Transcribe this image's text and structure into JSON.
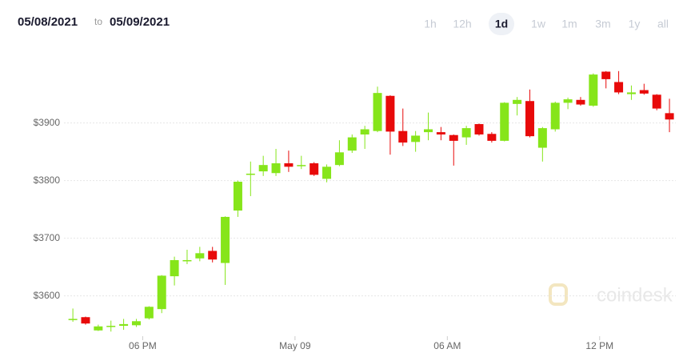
{
  "chart_data": {
    "type": "candlestick",
    "date_from": "05/08/2021",
    "range_separator": "to",
    "date_to": "05/09/2021",
    "ranges": [
      "1h",
      "12h",
      "1d",
      "1w",
      "1m",
      "3m",
      "1y",
      "all"
    ],
    "selected_range": "1d",
    "watermark": "coindesk",
    "up_color": "#86e51a",
    "down_color": "#e80a0a",
    "categories": [
      null,
      null,
      null,
      null,
      null,
      null,
      null,
      null,
      null,
      null,
      null,
      null,
      null,
      null,
      null,
      null,
      null,
      null,
      null,
      null,
      null,
      null,
      null,
      null,
      null,
      null,
      null,
      null,
      null,
      null,
      null,
      null,
      null,
      null,
      null,
      null,
      null,
      null,
      null,
      null,
      null,
      null,
      null,
      null,
      null,
      null,
      null,
      null
    ],
    "open": [
      3559,
      3563,
      3540,
      3546,
      3548,
      3549,
      3561,
      3577,
      3634,
      3660,
      3665,
      3678,
      3657,
      3748,
      3810,
      3816,
      3813,
      3830,
      3826,
      3830,
      3803,
      3827,
      3852,
      3880,
      3886,
      3947,
      3886,
      3867,
      3884,
      3884,
      3879,
      3875,
      3898,
      3881,
      3869,
      3933,
      3938,
      3857,
      3889,
      3935,
      3940,
      3930,
      3989,
      3971,
      3950,
      3957,
      3949,
      3917
    ],
    "high": [
      3578,
      3564,
      3550,
      3557,
      3560,
      3560,
      3582,
      3636,
      3668,
      3680,
      3685,
      3685,
      3738,
      3800,
      3833,
      3843,
      3855,
      3852,
      3843,
      3832,
      3828,
      3870,
      3880,
      3895,
      3963,
      3948,
      3925,
      3886,
      3918,
      3893,
      3880,
      3895,
      3899,
      3884,
      3936,
      3945,
      3958,
      3893,
      3937,
      3944,
      3945,
      3986,
      3990,
      3990,
      3965,
      3968,
      3950,
      3942
    ],
    "low": [
      3555,
      3550,
      3539,
      3538,
      3541,
      3546,
      3559,
      3570,
      3618,
      3655,
      3660,
      3658,
      3619,
      3737,
      3773,
      3808,
      3808,
      3815,
      3820,
      3808,
      3797,
      3825,
      3848,
      3855,
      3884,
      3845,
      3860,
      3850,
      3870,
      3870,
      3826,
      3862,
      3878,
      3866,
      3868,
      3913,
      3875,
      3833,
      3885,
      3924,
      3930,
      3928,
      3960,
      3950,
      3940,
      3949,
      3922,
      3884
    ],
    "close": [
      3560,
      3552,
      3547,
      3548,
      3551,
      3556,
      3581,
      3635,
      3662,
      3662,
      3674,
      3663,
      3737,
      3798,
      3812,
      3827,
      3830,
      3824,
      3827,
      3810,
      3824,
      3849,
      3875,
      3889,
      3952,
      3885,
      3866,
      3878,
      3889,
      3880,
      3869,
      3891,
      3880,
      3869,
      3935,
      3940,
      3877,
      3891,
      3935,
      3941,
      3932,
      3984,
      3976,
      3953,
      3953,
      3951,
      3925,
      3906
    ],
    "xlim": [
      -0.7,
      47.5
    ],
    "xticks": [
      {
        "value": 5.5,
        "label": "06 PM"
      },
      {
        "value": 17.5,
        "label": "May 09"
      },
      {
        "value": 29.5,
        "label": "06 AM"
      },
      {
        "value": 41.5,
        "label": "12 PM"
      }
    ],
    "ylim": [
      3530,
      4030
    ],
    "yticks": [
      {
        "value": 3600,
        "label": "$3600"
      },
      {
        "value": 3700,
        "label": "$3700"
      },
      {
        "value": 3800,
        "label": "$3800"
      },
      {
        "value": 3900,
        "label": "$3900"
      }
    ],
    "grid": true
  }
}
